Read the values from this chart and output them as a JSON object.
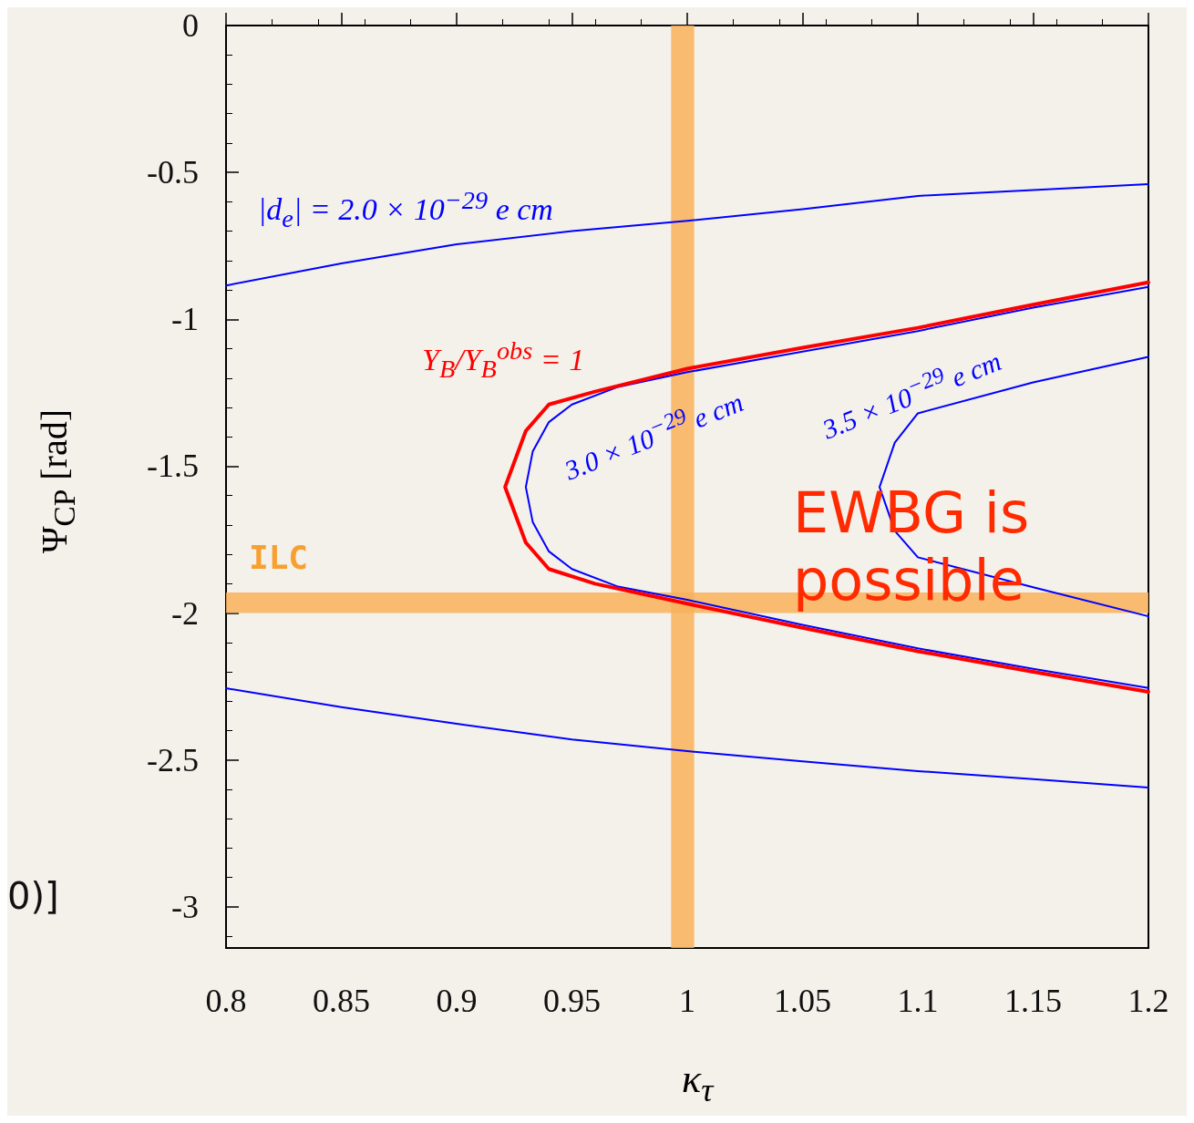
{
  "chart_data": {
    "type": "line",
    "xlabel": "κ$_{τ}$",
    "ylabel": "Ψ$_{CP}$ [rad]",
    "xlim": [
      0.8,
      1.2
    ],
    "ylim": [
      -3.14,
      0
    ],
    "xticks": [
      0.8,
      0.85,
      0.9,
      0.95,
      1,
      1.05,
      1.1,
      1.15,
      1.2
    ],
    "yticks": [
      0,
      -0.5,
      -1,
      -1.5,
      -2,
      -2.5,
      -3
    ],
    "grid": false,
    "marker": "none",
    "line_style": "solid",
    "series": [
      {
        "color": "#0000ff",
        "x": [
          0.8,
          0.85,
          0.9,
          0.95,
          1.0,
          1.05,
          1.1,
          1.15,
          1.2
        ],
        "values": [
          -0.885,
          -0.81,
          -0.745,
          -0.7,
          -0.665,
          -0.625,
          -0.58,
          -0.56,
          -0.54
        ]
      },
      {
        "color": "#0000ff",
        "x": [
          0.8,
          0.85,
          0.9,
          0.95,
          1.0,
          1.05,
          1.1,
          1.15,
          1.2
        ],
        "values": [
          -2.256,
          -2.32,
          -2.377,
          -2.43,
          -2.47,
          -2.505,
          -2.538,
          -2.565,
          -2.594
        ]
      },
      {
        "color": "#0000ff",
        "x": [
          1.2,
          1.15,
          1.1,
          1.05,
          1.0,
          0.97,
          0.95,
          0.94,
          0.933,
          0.93,
          0.933,
          0.94,
          0.95,
          0.97,
          1.0,
          1.05,
          1.1,
          1.15,
          1.2
        ],
        "values": [
          -0.89,
          -0.96,
          -1.04,
          -1.11,
          -1.18,
          -1.23,
          -1.29,
          -1.35,
          -1.45,
          -1.571,
          -1.69,
          -1.79,
          -1.85,
          -1.91,
          -1.955,
          -2.04,
          -2.12,
          -2.19,
          -2.255
        ]
      },
      {
        "color": "#ff0000",
        "x": [
          1.2,
          1.15,
          1.1,
          1.05,
          1.0,
          0.96,
          0.94,
          0.93,
          0.921,
          0.93,
          0.94,
          0.96,
          1.0,
          1.05,
          1.1,
          1.15,
          1.2
        ],
        "values": [
          -0.874,
          -0.95,
          -1.029,
          -1.097,
          -1.168,
          -1.246,
          -1.29,
          -1.38,
          -1.571,
          -1.76,
          -1.85,
          -1.9,
          -1.968,
          -2.05,
          -2.13,
          -2.2,
          -2.268
        ]
      },
      {
        "color": "#0000ff",
        "x": [
          1.2,
          1.15,
          1.1,
          1.09,
          1.0834,
          1.09,
          1.1,
          1.15,
          1.2
        ],
        "values": [
          -1.128,
          -1.215,
          -1.32,
          -1.42,
          -1.571,
          -1.72,
          -1.81,
          -1.912,
          -2.011
        ]
      }
    ],
    "bands": [
      {
        "axis": "x",
        "from": 0.993,
        "to": 1.003,
        "color": "#f8b25a"
      },
      {
        "axis": "y",
        "from": -2.0,
        "to": -1.93,
        "label": "ILC",
        "color": "#f8b25a"
      }
    ],
    "annotations": [
      "|d$_{e}$| = 2.0 × 10$^{−29}$ e cm",
      "Y$_{B}$/Y$_{B}$$^{obs}$ = 1",
      "3.0 × 10$^{−29}$ e cm",
      "3.5 × 10$^{−29}$ e cm",
      "EWBG is possible",
      "0)]"
    ]
  }
}
